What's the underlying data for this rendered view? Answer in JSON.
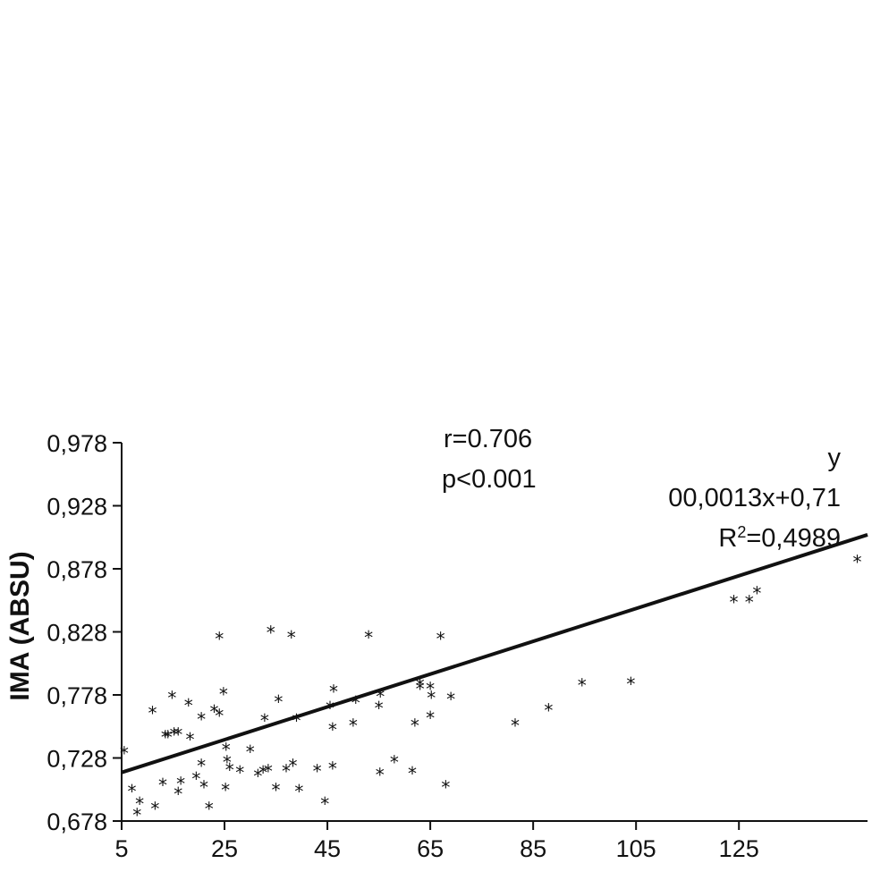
{
  "chart_data": {
    "type": "scatter",
    "title": "",
    "xlabel": "",
    "ylabel": "IMA (ABSU)",
    "xlim": [
      5,
      150
    ],
    "ylim": [
      0.678,
      0.978
    ],
    "x_ticks": [
      5,
      25,
      45,
      65,
      85,
      105,
      125
    ],
    "x_tick_labels": [
      "5",
      "25",
      "45",
      "65",
      "85",
      "105",
      "125"
    ],
    "y_ticks": [
      0.678,
      0.728,
      0.778,
      0.828,
      0.878,
      0.928,
      0.978
    ],
    "y_tick_labels": [
      "0,678",
      "0,728",
      "0,778",
      "0,828",
      "0,878",
      "0,928",
      "0,978"
    ],
    "grid": false,
    "marker": "*",
    "annotations": {
      "r_text": "r=0.706",
      "p_text": "p<0.001",
      "eq_line1": "y",
      "eq_line2": "00,0013x+0,71",
      "r2_prefix": "R",
      "r2_sup": "2",
      "r2_value": "=0,4989"
    },
    "trendline": {
      "slope": 0.0013,
      "intercept": 0.71,
      "x_range": [
        5,
        150
      ]
    },
    "points": [
      [
        5.5,
        0.735
      ],
      [
        7,
        0.705
      ],
      [
        8,
        0.686
      ],
      [
        8.5,
        0.695
      ],
      [
        11,
        0.767
      ],
      [
        11.5,
        0.691
      ],
      [
        13,
        0.71
      ],
      [
        13.5,
        0.748
      ],
      [
        14,
        0.748
      ],
      [
        14.8,
        0.779
      ],
      [
        15.2,
        0.75
      ],
      [
        16,
        0.75
      ],
      [
        16,
        0.703
      ],
      [
        16.5,
        0.711
      ],
      [
        18,
        0.773
      ],
      [
        18.3,
        0.746
      ],
      [
        19.5,
        0.715
      ],
      [
        20.5,
        0.762
      ],
      [
        20.5,
        0.725
      ],
      [
        21,
        0.708
      ],
      [
        22,
        0.691
      ],
      [
        23,
        0.768
      ],
      [
        24,
        0.826
      ],
      [
        24,
        0.765
      ],
      [
        24.8,
        0.782
      ],
      [
        25.2,
        0.706
      ],
      [
        25.3,
        0.738
      ],
      [
        25.5,
        0.728
      ],
      [
        26,
        0.722
      ],
      [
        28,
        0.72
      ],
      [
        30,
        0.736
      ],
      [
        31.5,
        0.717
      ],
      [
        32.5,
        0.72
      ],
      [
        32.8,
        0.761
      ],
      [
        33.5,
        0.721
      ],
      [
        34,
        0.831
      ],
      [
        35,
        0.706
      ],
      [
        35.5,
        0.776
      ],
      [
        37,
        0.721
      ],
      [
        38,
        0.827
      ],
      [
        38.3,
        0.725
      ],
      [
        39,
        0.761
      ],
      [
        39.5,
        0.705
      ],
      [
        43,
        0.721
      ],
      [
        44.5,
        0.695
      ],
      [
        45.5,
        0.771
      ],
      [
        46,
        0.754
      ],
      [
        46,
        0.723
      ],
      [
        46.2,
        0.784
      ],
      [
        50,
        0.757
      ],
      [
        50.5,
        0.775
      ],
      [
        53,
        0.827
      ],
      [
        55,
        0.771
      ],
      [
        55.3,
        0.78
      ],
      [
        55.2,
        0.718
      ],
      [
        58,
        0.728
      ],
      [
        61.5,
        0.719
      ],
      [
        62,
        0.757
      ],
      [
        63,
        0.789
      ],
      [
        63,
        0.786
      ],
      [
        65,
        0.763
      ],
      [
        65,
        0.786
      ],
      [
        65.2,
        0.779
      ],
      [
        67,
        0.826
      ],
      [
        68,
        0.708
      ],
      [
        69,
        0.778
      ],
      [
        81.5,
        0.757
      ],
      [
        88,
        0.769
      ],
      [
        94.5,
        0.789
      ],
      [
        104,
        0.79
      ],
      [
        124,
        0.855
      ],
      [
        127,
        0.855
      ],
      [
        128.5,
        0.862
      ],
      [
        148,
        0.887
      ]
    ]
  }
}
